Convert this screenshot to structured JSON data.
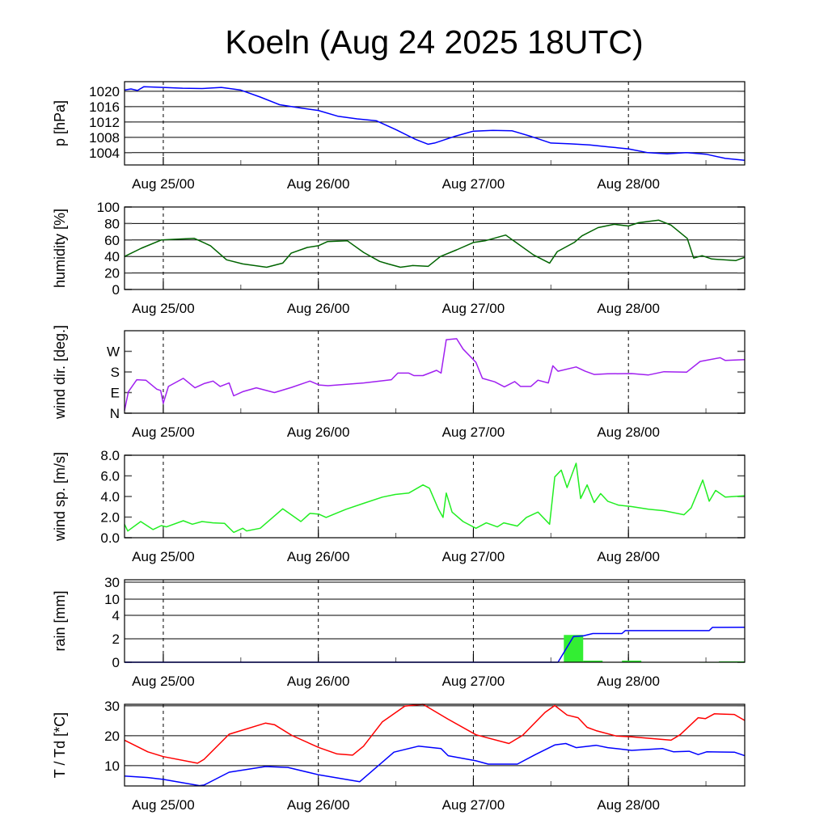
{
  "chart_data": {
    "type": "line",
    "title": "Koeln (Aug 24 2025 18UTC)",
    "x_unit": "hours since Aug 24 18UTC",
    "x_range": [
      0,
      96
    ],
    "x_ticks": [
      {
        "label": "Aug 25/00",
        "hour": 6
      },
      {
        "label": "Aug 26/00",
        "hour": 30
      },
      {
        "label": "Aug 27/00",
        "hour": 54
      },
      {
        "label": "Aug 28/00",
        "hour": 78
      }
    ],
    "panels": [
      {
        "ylabel": "p [hPa]",
        "ylim": [
          1000.8,
          1022.5
        ],
        "scale": "linear",
        "gridlines": true,
        "yticks": [
          {
            "v": 1004,
            "label": "1004"
          },
          {
            "v": 1008,
            "label": "1008"
          },
          {
            "v": 1012,
            "label": "1012"
          },
          {
            "v": 1016,
            "label": "1016"
          },
          {
            "v": 1020,
            "label": "1020"
          }
        ],
        "series": [
          {
            "name": "pressure",
            "color": "#0000ff",
            "x": [
              0,
              1,
              2,
              3,
              6,
              9,
              12,
              15,
              18,
              21,
              24,
              27,
              30,
              33,
              36,
              39,
              42,
              45,
              47,
              48,
              51,
              54,
              57,
              60,
              63,
              66,
              69,
              72,
              75,
              78,
              81,
              84,
              87,
              90,
              93,
              96
            ],
            "y": [
              1020.3,
              1020.6,
              1020.2,
              1021.2,
              1021,
              1020.8,
              1020.7,
              1021,
              1020.3,
              1018.5,
              1016.5,
              1015.7,
              1015,
              1013.5,
              1012.8,
              1012.3,
              1010,
              1007.5,
              1006.2,
              1006.5,
              1008.2,
              1009.6,
              1009.8,
              1009.7,
              1008.2,
              1006.5,
              1006.3,
              1006,
              1005.5,
              1005,
              1004,
              1003.7,
              1004,
              1003.6,
              1002.5,
              1002
            ]
          }
        ]
      },
      {
        "ylabel": "humidity [%]",
        "ylim": [
          0,
          100
        ],
        "scale": "linear",
        "gridlines": true,
        "yticks": [
          {
            "v": 0,
            "label": "0"
          },
          {
            "v": 20,
            "label": "20"
          },
          {
            "v": 40,
            "label": "40"
          },
          {
            "v": 60,
            "label": "60"
          },
          {
            "v": 80,
            "label": "80"
          },
          {
            "v": 100,
            "label": "100"
          }
        ],
        "series": [
          {
            "name": "humidity",
            "color": "#006400",
            "x": [
              0,
              2.6,
              5.7,
              10.8,
              13.3,
              15.8,
              18.3,
              22,
              24.5,
              25.8,
              28.3,
              30,
              31.4,
              34.5,
              37,
              39.5,
              40.8,
              42.7,
              44.6,
              47,
              48.9,
              51.4,
              54,
              55.8,
              59,
              63.3,
              65.8,
              67,
              69.6,
              70.8,
              73.3,
              75.8,
              78,
              79.6,
              82.7,
              84.6,
              87.1,
              88.1,
              89.4,
              90.9,
              94.6,
              96
            ],
            "y": [
              40,
              50,
              60,
              62,
              53,
              36,
              31,
              27,
              32,
              44,
              51,
              53,
              58,
              59,
              45,
              34,
              31,
              27,
              29,
              28,
              40,
              48,
              57,
              59,
              66,
              42,
              32,
              46,
              57,
              65,
              75,
              79,
              77,
              81,
              84,
              78,
              62,
              38,
              41,
              37,
              35,
              39
            ]
          }
        ]
      },
      {
        "ylabel": "wind dir. [deg.]",
        "ylim": [
          0,
          360
        ],
        "scale": "linear",
        "gridlines": false,
        "yticks": [
          {
            "v": 0,
            "label": "N"
          },
          {
            "v": 90,
            "label": "E"
          },
          {
            "v": 180,
            "label": "S"
          },
          {
            "v": 270,
            "label": "W"
          }
        ],
        "series": [
          {
            "name": "wind direction",
            "color": "#a020f0",
            "x": [
              0,
              0.6,
              1.9,
              3.3,
              5,
              5.6,
              6,
              6.8,
              9.1,
              10.9,
              12.3,
              13.7,
              14.8,
              16.2,
              16.9,
              18.3,
              20.4,
              23.2,
              25.9,
              28.7,
              30.1,
              31.5,
              37,
              41.3,
              42.3,
              44,
              44.8,
              46.2,
              48.3,
              49,
              49.8,
              51.4,
              52.4,
              54.4,
              55.4,
              57.3,
              58.8,
              60.4,
              61.3,
              62.9,
              64,
              65.6,
              66.3,
              67.1,
              69.9,
              71.3,
              72.7,
              74.8,
              78.5,
              81.1,
              83.5,
              87,
              89.1,
              92.2,
              93,
              96
            ],
            "y": [
              12,
              94,
              146,
              144,
              105,
              99,
              43,
              117,
              152,
              111,
              129,
              140,
              117,
              132,
              76,
              94,
              111,
              90,
              113,
              140,
              123,
              120,
              132,
              146,
              175,
              175,
              164,
              164,
              187,
              175,
              321,
              325,
              280,
              222,
              152,
              137,
              115,
              138,
              117,
              117,
              144,
              132,
              207,
              183,
              202,
              183,
              169,
              172,
              173,
              167,
              181,
              179,
              226,
              242,
              230,
              234
            ]
          }
        ]
      },
      {
        "ylabel": "wind sp. [m/s]",
        "ylim": [
          0,
          8
        ],
        "scale": "linear",
        "gridlines": false,
        "yticks": [
          {
            "v": 0,
            "label": "0.0"
          },
          {
            "v": 2,
            "label": "2.0"
          },
          {
            "v": 4,
            "label": "4.0"
          },
          {
            "v": 6,
            "label": "6.0"
          },
          {
            "v": 8,
            "label": "8.0"
          }
        ],
        "series": [
          {
            "name": "wind speed",
            "color": "#22ee22",
            "x": [
              0,
              0.5,
              2.5,
              4.4,
              5.7,
              6.5,
              9.1,
              10.5,
              12,
              13.7,
              15.5,
              16.9,
              18.3,
              18.9,
              21,
              24.5,
              27.3,
              28.7,
              30.1,
              31.2,
              34.3,
              37,
              39.9,
              41.9,
              44,
              46.2,
              47.2,
              48.6,
              49.3,
              49.8,
              50.7,
              52.4,
              54.4,
              56,
              57.7,
              58.7,
              60.8,
              62.2,
              64,
              65.8,
              66.6,
              67.6,
              68.5,
              69.9,
              70.6,
              71.6,
              72.7,
              73.7,
              74.8,
              76.5,
              78.5,
              81.1,
              83.5,
              86.6,
              87.7,
              89.5,
              90.5,
              91.5,
              93,
              96
            ],
            "y": [
              1.3,
              0.65,
              1.57,
              0.79,
              1.18,
              1.05,
              1.65,
              1.31,
              1.57,
              1.44,
              1.39,
              0.52,
              0.92,
              0.66,
              0.92,
              2.81,
              1.57,
              2.36,
              2.28,
              1.97,
              2.76,
              3.33,
              3.94,
              4.2,
              4.33,
              5.12,
              4.8,
              2.76,
              1.97,
              4.33,
              2.49,
              1.57,
              0.92,
              1.44,
              1.05,
              1.44,
              1.13,
              1.97,
              2.49,
              1.31,
              5.9,
              6.56,
              4.86,
              7.22,
              3.8,
              5.12,
              3.41,
              4.28,
              3.54,
              3.15,
              3.02,
              2.76,
              2.62,
              2.23,
              2.89,
              5.59,
              3.54,
              4.59,
              3.94,
              4.07
            ]
          }
        ]
      },
      {
        "ylabel": "rain [mm]",
        "ylim": [
          0,
          33
        ],
        "scale": "custom",
        "gridlines": true,
        "yticks": [
          {
            "v": 0,
            "label": "0"
          },
          {
            "v": 2,
            "label": "2"
          },
          {
            "v": 4,
            "label": "4"
          },
          {
            "v": 10,
            "label": "10"
          },
          {
            "v": 30,
            "label": "30"
          }
        ],
        "bars": {
          "name": "precipitation per interval",
          "color": "#33ee33",
          "items": [
            {
              "x0": 68,
              "x1": 71,
              "v": 2.33
            },
            {
              "x0": 71,
              "x1": 74,
              "v": 0.14
            },
            {
              "x0": 77,
              "x1": 80,
              "v": 0.14
            },
            {
              "x0": 89,
              "x1": 92,
              "v": 0.03
            },
            {
              "x0": 92,
              "x1": 96,
              "v": 0.08
            }
          ]
        },
        "series": [
          {
            "name": "accumulated rain",
            "color": "#0000ff",
            "x": [
              0,
              67.1,
              69.5,
              71,
              72.5,
              77,
              77.5,
              90.5,
              91,
              96
            ],
            "y": [
              0,
              0,
              2.2,
              2.25,
              2.45,
              2.45,
              2.7,
              2.7,
              2.97,
              2.98
            ]
          }
        ]
      },
      {
        "ylabel": "T / Td [*C]",
        "ylim": [
          3.2,
          30.5
        ],
        "scale": "linear",
        "gridlines": true,
        "yticks": [
          {
            "v": 10,
            "label": "10"
          },
          {
            "v": 20,
            "label": "20"
          },
          {
            "v": 30,
            "label": "30"
          }
        ],
        "series": [
          {
            "name": "temperature",
            "color": "#ff0000",
            "x": [
              0,
              3.6,
              6,
              11.3,
              12.3,
              16.2,
              21.8,
              23.2,
              25.9,
              30.1,
              32.9,
              35.3,
              37,
              39.9,
              43.4,
              46.2,
              50.1,
              54.4,
              59.5,
              61.6,
              65.1,
              66.6,
              68.5,
              70.2,
              71.6,
              73,
              76.1,
              78.5,
              84.6,
              86,
              88.8,
              89.9,
              91.3,
              94.4,
              96
            ],
            "y": [
              18.5,
              14.6,
              13,
              10.8,
              12.1,
              20.5,
              24.2,
              23.7,
              20.1,
              16,
              13.9,
              13.5,
              16.5,
              24.6,
              29.9,
              30.5,
              25.5,
              20.3,
              17.4,
              20.1,
              27.8,
              30.1,
              26.9,
              26,
              22.8,
              21.7,
              19.9,
              19.6,
              18.5,
              20.3,
              26,
              25.7,
              27.3,
              27.1,
              25.1
            ]
          },
          {
            "name": "dew point",
            "color": "#0000ff",
            "x": [
              0,
              3.6,
              6,
              11.6,
              12.3,
              16.2,
              21.8,
              25.3,
              30.1,
              36.4,
              41.7,
              45.5,
              49,
              50.1,
              54.4,
              56.3,
              60.8,
              63.6,
              66.6,
              68.3,
              69.9,
              73,
              74.8,
              78.5,
              83.3,
              85,
              87.4,
              88.8,
              90.1,
              94.4,
              96
            ],
            "y": [
              6.5,
              6,
              5.4,
              3.3,
              3.5,
              7.8,
              9.7,
              9.4,
              6.9,
              4.6,
              14.5,
              16.5,
              15.7,
              13.3,
              11.6,
              10.5,
              10.5,
              13.7,
              16.9,
              17.4,
              16,
              16.8,
              16,
              15.1,
              15.7,
              14.6,
              14.8,
              13.7,
              14.6,
              14.5,
              13.3
            ]
          }
        ]
      }
    ]
  }
}
